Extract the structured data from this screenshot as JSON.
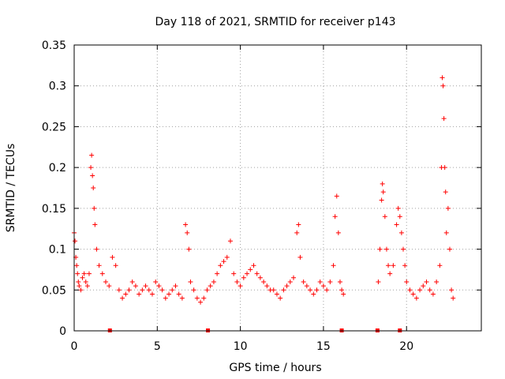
{
  "chart_data": {
    "type": "scatter",
    "title": "Day 118 of 2021, SRMTID for receiver p143",
    "xlabel": "GPS time / hours",
    "ylabel": "SRMTID / TECUs",
    "xlim": [
      0,
      24.5
    ],
    "ylim": [
      0,
      0.35
    ],
    "x_ticks": [
      0,
      5,
      10,
      15,
      20
    ],
    "x_tick_labels": [
      "0",
      "5",
      "10",
      "15",
      "20"
    ],
    "y_ticks": [
      0,
      0.05,
      0.1,
      0.15,
      0.2,
      0.25,
      0.3,
      0.35
    ],
    "y_tick_labels": [
      "0",
      "0.05",
      "0.1",
      "0.15",
      "0.2",
      "0.25",
      "0.3",
      "0.35"
    ],
    "grid": true,
    "marker": "+",
    "color": "#ff0000",
    "baseline_markers": [
      2.15,
      8.05,
      16.1,
      18.25,
      19.6
    ],
    "series": [
      {
        "name": "SRMTID",
        "points": [
          [
            0.0,
            0.12
          ],
          [
            0.05,
            0.11
          ],
          [
            0.1,
            0.09
          ],
          [
            0.15,
            0.08
          ],
          [
            0.2,
            0.07
          ],
          [
            0.25,
            0.06
          ],
          [
            0.3,
            0.055
          ],
          [
            0.4,
            0.05
          ],
          [
            0.5,
            0.065
          ],
          [
            0.6,
            0.07
          ],
          [
            0.7,
            0.06
          ],
          [
            0.8,
            0.055
          ],
          [
            0.9,
            0.07
          ],
          [
            1.0,
            0.2
          ],
          [
            1.05,
            0.215
          ],
          [
            1.1,
            0.19
          ],
          [
            1.15,
            0.175
          ],
          [
            1.2,
            0.15
          ],
          [
            1.25,
            0.13
          ],
          [
            1.35,
            0.1
          ],
          [
            1.5,
            0.08
          ],
          [
            1.7,
            0.07
          ],
          [
            1.9,
            0.06
          ],
          [
            2.1,
            0.055
          ],
          [
            2.3,
            0.09
          ],
          [
            2.5,
            0.08
          ],
          [
            2.7,
            0.05
          ],
          [
            2.9,
            0.04
          ],
          [
            3.1,
            0.045
          ],
          [
            3.3,
            0.05
          ],
          [
            3.5,
            0.06
          ],
          [
            3.7,
            0.055
          ],
          [
            3.9,
            0.045
          ],
          [
            4.1,
            0.05
          ],
          [
            4.3,
            0.055
          ],
          [
            4.5,
            0.05
          ],
          [
            4.7,
            0.045
          ],
          [
            4.9,
            0.06
          ],
          [
            5.1,
            0.055
          ],
          [
            5.3,
            0.05
          ],
          [
            5.5,
            0.04
          ],
          [
            5.7,
            0.045
          ],
          [
            5.9,
            0.05
          ],
          [
            6.1,
            0.055
          ],
          [
            6.3,
            0.045
          ],
          [
            6.5,
            0.04
          ],
          [
            6.7,
            0.13
          ],
          [
            6.8,
            0.12
          ],
          [
            6.9,
            0.1
          ],
          [
            7.0,
            0.06
          ],
          [
            7.2,
            0.05
          ],
          [
            7.4,
            0.04
          ],
          [
            7.6,
            0.035
          ],
          [
            7.8,
            0.04
          ],
          [
            8.0,
            0.05
          ],
          [
            8.2,
            0.055
          ],
          [
            8.4,
            0.06
          ],
          [
            8.6,
            0.07
          ],
          [
            8.8,
            0.08
          ],
          [
            9.0,
            0.085
          ],
          [
            9.2,
            0.09
          ],
          [
            9.4,
            0.11
          ],
          [
            9.6,
            0.07
          ],
          [
            9.8,
            0.06
          ],
          [
            10.0,
            0.055
          ],
          [
            10.2,
            0.065
          ],
          [
            10.4,
            0.07
          ],
          [
            10.6,
            0.075
          ],
          [
            10.8,
            0.08
          ],
          [
            11.0,
            0.07
          ],
          [
            11.2,
            0.065
          ],
          [
            11.4,
            0.06
          ],
          [
            11.6,
            0.055
          ],
          [
            11.8,
            0.05
          ],
          [
            12.0,
            0.05
          ],
          [
            12.2,
            0.045
          ],
          [
            12.4,
            0.04
          ],
          [
            12.6,
            0.05
          ],
          [
            12.8,
            0.055
          ],
          [
            13.0,
            0.06
          ],
          [
            13.2,
            0.065
          ],
          [
            13.4,
            0.12
          ],
          [
            13.5,
            0.13
          ],
          [
            13.6,
            0.09
          ],
          [
            13.8,
            0.06
          ],
          [
            14.0,
            0.055
          ],
          [
            14.2,
            0.05
          ],
          [
            14.4,
            0.045
          ],
          [
            14.6,
            0.05
          ],
          [
            14.8,
            0.06
          ],
          [
            15.0,
            0.055
          ],
          [
            15.2,
            0.05
          ],
          [
            15.4,
            0.06
          ],
          [
            15.6,
            0.08
          ],
          [
            15.7,
            0.14
          ],
          [
            15.8,
            0.165
          ],
          [
            15.9,
            0.12
          ],
          [
            16.0,
            0.06
          ],
          [
            16.1,
            0.05
          ],
          [
            16.2,
            0.045
          ],
          [
            18.3,
            0.06
          ],
          [
            18.4,
            0.1
          ],
          [
            18.5,
            0.16
          ],
          [
            18.55,
            0.18
          ],
          [
            18.6,
            0.17
          ],
          [
            18.7,
            0.14
          ],
          [
            18.8,
            0.1
          ],
          [
            18.9,
            0.08
          ],
          [
            19.0,
            0.07
          ],
          [
            19.2,
            0.08
          ],
          [
            19.4,
            0.13
          ],
          [
            19.5,
            0.15
          ],
          [
            19.6,
            0.14
          ],
          [
            19.7,
            0.12
          ],
          [
            19.8,
            0.1
          ],
          [
            19.9,
            0.08
          ],
          [
            20.0,
            0.06
          ],
          [
            20.2,
            0.05
          ],
          [
            20.4,
            0.045
          ],
          [
            20.6,
            0.04
          ],
          [
            20.8,
            0.05
          ],
          [
            21.0,
            0.055
          ],
          [
            21.2,
            0.06
          ],
          [
            21.4,
            0.05
          ],
          [
            21.6,
            0.045
          ],
          [
            21.8,
            0.06
          ],
          [
            22.0,
            0.08
          ],
          [
            22.1,
            0.2
          ],
          [
            22.15,
            0.31
          ],
          [
            22.2,
            0.3
          ],
          [
            22.25,
            0.26
          ],
          [
            22.3,
            0.2
          ],
          [
            22.35,
            0.17
          ],
          [
            22.4,
            0.12
          ],
          [
            22.5,
            0.15
          ],
          [
            22.6,
            0.1
          ],
          [
            22.7,
            0.05
          ],
          [
            22.8,
            0.04
          ]
        ]
      }
    ]
  }
}
